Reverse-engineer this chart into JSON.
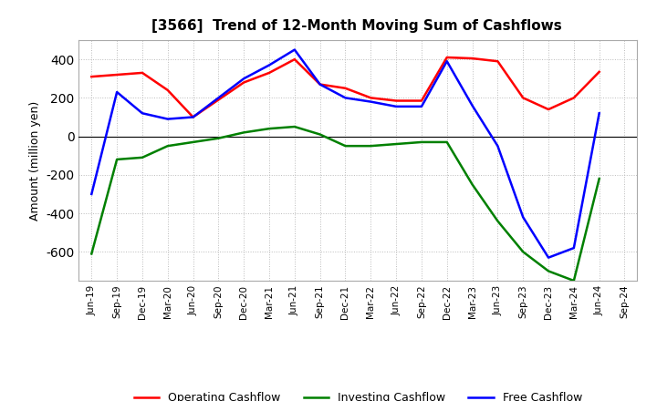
{
  "title": "[3566]  Trend of 12-Month Moving Sum of Cashflows",
  "ylabel": "Amount (million yen)",
  "x_labels": [
    "Jun-19",
    "Sep-19",
    "Dec-19",
    "Mar-20",
    "Jun-20",
    "Sep-20",
    "Dec-20",
    "Mar-21",
    "Jun-21",
    "Sep-21",
    "Dec-21",
    "Mar-22",
    "Jun-22",
    "Sep-22",
    "Dec-22",
    "Mar-23",
    "Jun-23",
    "Sep-23",
    "Dec-23",
    "Mar-24",
    "Jun-24",
    "Sep-24"
  ],
  "operating": [
    310,
    320,
    330,
    240,
    100,
    190,
    280,
    330,
    400,
    270,
    250,
    200,
    185,
    185,
    410,
    405,
    390,
    200,
    140,
    200,
    335,
    null
  ],
  "investing": [
    -610,
    -120,
    -110,
    -50,
    -30,
    -10,
    20,
    40,
    50,
    10,
    -50,
    -50,
    -40,
    -30,
    -30,
    -250,
    -440,
    -600,
    -700,
    -750,
    -220,
    null
  ],
  "free": [
    -300,
    230,
    120,
    90,
    100,
    200,
    300,
    370,
    450,
    270,
    200,
    180,
    155,
    155,
    390,
    160,
    -50,
    -420,
    -630,
    -580,
    120,
    null
  ],
  "operating_color": "#ff0000",
  "investing_color": "#008000",
  "free_color": "#0000ff",
  "ylim": [
    -750,
    500
  ],
  "yticks": [
    -600,
    -400,
    -200,
    0,
    200,
    400
  ],
  "background_color": "#ffffff",
  "grid_color": "#bbbbbb",
  "legend_labels": [
    "Operating Cashflow",
    "Investing Cashflow",
    "Free Cashflow"
  ]
}
